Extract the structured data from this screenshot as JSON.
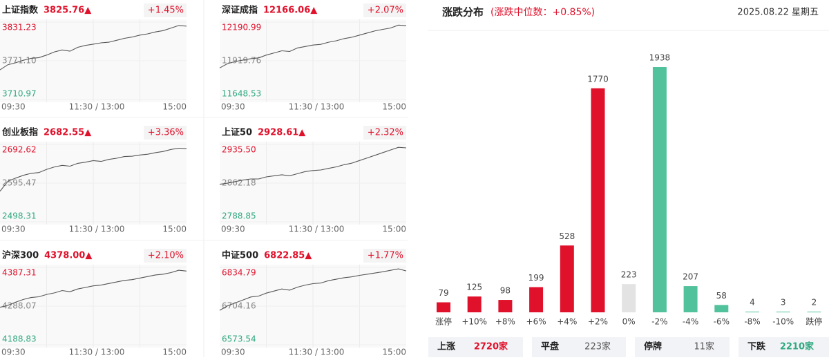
{
  "indices": [
    {
      "name": "上证指数",
      "price": "3825.76▲",
      "change": "+1.45%",
      "chart_data": {
        "type": "line",
        "values": [
          3757,
          3765,
          3768,
          3772,
          3775,
          3776,
          3780,
          3785,
          3788,
          3786,
          3792,
          3795,
          3797,
          3799,
          3800,
          3803,
          3806,
          3808,
          3811,
          3813,
          3816,
          3818,
          3822,
          3826,
          3825
        ],
        "ylim": [
          3710.97,
          3831.23
        ],
        "yticks": [
          3710.97,
          {
            "value": 3771.1,
            "label": "3771.10"
          },
          3831.23
        ],
        "x_labels": [
          "09:30",
          "11:30 / 13:00",
          "15:00"
        ]
      }
    },
    {
      "name": "深证成指",
      "price": "12166.06▲",
      "change": "+2.07%",
      "chart_data": {
        "type": "line",
        "values": [
          11870,
          11900,
          11915,
          11925,
          11935,
          11940,
          11960,
          11975,
          11990,
          11985,
          12010,
          12020,
          12030,
          12035,
          12050,
          12060,
          12075,
          12085,
          12100,
          12115,
          12130,
          12140,
          12150,
          12170,
          12166
        ],
        "ylim": [
          11648.53,
          12190.99
        ],
        "yticks": [
          11648.53,
          11919.76,
          12190.99
        ],
        "x_labels": [
          "09:30",
          "11:30 / 13:00",
          "15:00"
        ]
      }
    },
    {
      "name": "创业板指",
      "price": "2682.55▲",
      "change": "+3.36%",
      "chart_data": {
        "type": "line",
        "values": [
          2575,
          2600,
          2608,
          2615,
          2620,
          2622,
          2630,
          2636,
          2640,
          2638,
          2645,
          2648,
          2652,
          2650,
          2655,
          2658,
          2662,
          2663,
          2666,
          2668,
          2672,
          2675,
          2680,
          2683,
          2682
        ],
        "ylim": [
          2498.31,
          2692.62
        ],
        "yticks": [
          2498.31,
          2595.47,
          2692.62
        ],
        "x_labels": [
          "09:30",
          "11:30 / 13:00",
          "15:00"
        ]
      }
    },
    {
      "name": "上证50",
      "price": "2928.61▲",
      "change": "+2.32%",
      "chart_data": {
        "type": "line",
        "values": [
          2860,
          2862,
          2865,
          2868,
          2870,
          2870,
          2874,
          2876,
          2878,
          2876,
          2880,
          2884,
          2886,
          2887,
          2890,
          2893,
          2897,
          2900,
          2905,
          2910,
          2915,
          2920,
          2925,
          2930,
          2929
        ],
        "ylim": [
          2788.85,
          2935.5
        ],
        "yticks": [
          2788.85,
          2862.18,
          {
            "value": 2935.5,
            "label": "2935.50"
          }
        ],
        "x_labels": [
          "09:30",
          "11:30 / 13:00",
          "15:00"
        ]
      }
    },
    {
      "name": "沪深300",
      "price": "4378.00▲",
      "change": "+2.10%",
      "chart_data": {
        "type": "line",
        "values": [
          4285,
          4290,
          4298,
          4305,
          4310,
          4312,
          4318,
          4322,
          4328,
          4325,
          4332,
          4336,
          4340,
          4342,
          4346,
          4350,
          4354,
          4356,
          4360,
          4364,
          4368,
          4370,
          4374,
          4380,
          4378
        ],
        "ylim": [
          4188.83,
          4387.31
        ],
        "yticks": [
          4188.83,
          4288.07,
          4387.31
        ],
        "x_labels": [
          "09:30",
          "11:30 / 13:00",
          "15:00"
        ]
      }
    },
    {
      "name": "中证500",
      "price": "6822.85▲",
      "change": "+1.77%",
      "chart_data": {
        "type": "line",
        "values": [
          6690,
          6705,
          6715,
          6725,
          6735,
          6738,
          6748,
          6755,
          6762,
          6758,
          6768,
          6775,
          6780,
          6782,
          6790,
          6795,
          6800,
          6803,
          6808,
          6812,
          6816,
          6820,
          6825,
          6830,
          6823
        ],
        "ylim": [
          6573.54,
          6834.79
        ],
        "yticks": [
          6573.54,
          6704.16,
          6834.79
        ],
        "x_labels": [
          "09:30",
          "11:30 / 13:00",
          "15:00"
        ]
      }
    }
  ],
  "distribution": {
    "title": "涨跌分布",
    "subtitle": "(涨跌中位数：+0.85%)",
    "date": "2025.08.22 星期五",
    "chart_data": {
      "type": "bar",
      "categories": [
        "涨停",
        "+10%",
        "+8%",
        "+6%",
        "+4%",
        "+2%",
        "0%",
        "-2%",
        "-4%",
        "-6%",
        "-8%",
        "-10%",
        "跌停"
      ],
      "values": [
        79,
        125,
        98,
        199,
        528,
        1770,
        223,
        1938,
        207,
        58,
        4,
        3,
        2
      ],
      "colors": [
        "#e0112b",
        "#e0112b",
        "#e0112b",
        "#e0112b",
        "#e0112b",
        "#e0112b",
        "#e3e3e3",
        "#52c29c",
        "#52c29c",
        "#52c29c",
        "#52c29c",
        "#52c29c",
        "#52c29c"
      ]
    }
  },
  "summary": [
    {
      "label": "上涨",
      "value": "2720家",
      "color": "#e0112b"
    },
    {
      "label": "平盘",
      "value": "223家",
      "color": "#555555"
    },
    {
      "label": "停牌",
      "value": "11家",
      "color": "#555555"
    },
    {
      "label": "下跌",
      "value": "2210家",
      "color": "#2fa87f"
    }
  ]
}
